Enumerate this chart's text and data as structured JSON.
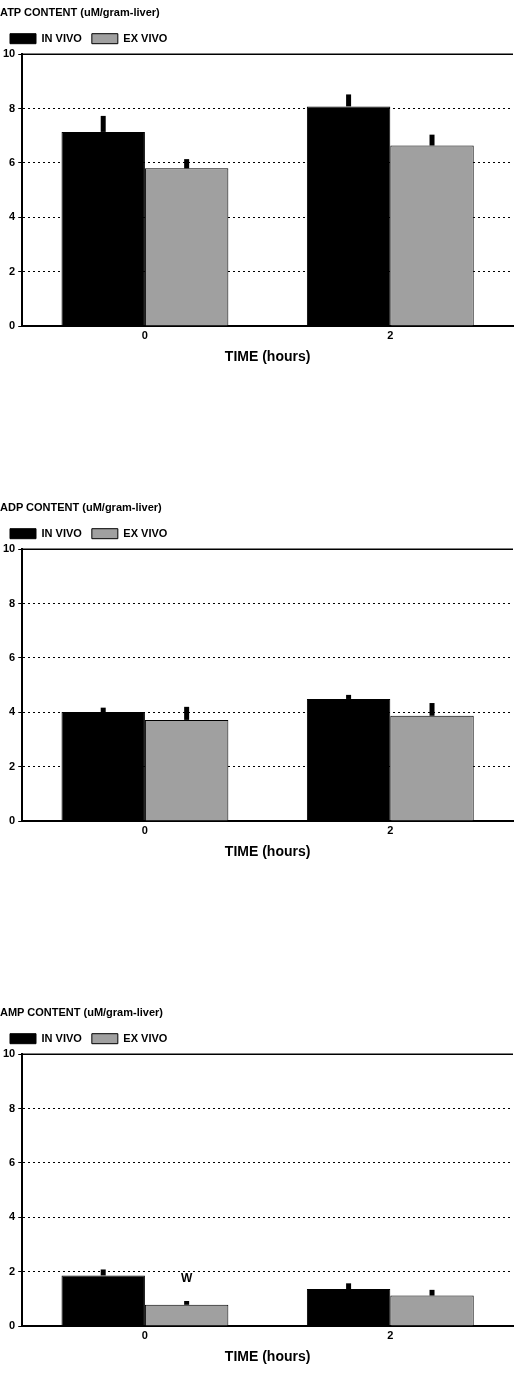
{
  "chart_data": [
    {
      "type": "bar",
      "title": "ATP CONTENT (uM/gram-liver)",
      "xlabel": "TIME (hours)",
      "categories": [
        "0",
        "2"
      ],
      "series": [
        {
          "name": "IN VIVO",
          "color": "#000000",
          "values": [
            7.14,
            8.08
          ],
          "errors": [
            [
              7.14,
              7.73
            ],
            [
              8.08,
              8.52
            ]
          ]
        },
        {
          "name": "EX VIVO",
          "color": "#a0a0a0",
          "values": [
            5.8,
            6.64
          ],
          "errors": [
            [
              5.8,
              6.14
            ],
            [
              6.64,
              7.04
            ]
          ]
        }
      ],
      "ylim": [
        0,
        10
      ],
      "yticks": [
        0,
        2,
        4,
        6,
        8,
        10
      ],
      "grid": "y",
      "line_style": "dotted",
      "legend": "top left"
    },
    {
      "type": "bar",
      "title": "ADP CONTENT (uM/gram-liver)",
      "xlabel": "TIME (hours)",
      "categories": [
        "0",
        "2"
      ],
      "series": [
        {
          "name": "IN VIVO",
          "color": "#000000",
          "values": [
            4.01,
            4.49
          ],
          "errors": [
            [
              4.01,
              4.17
            ],
            [
              4.49,
              4.64
            ]
          ]
        },
        {
          "name": "EX VIVO",
          "color": "#a0a0a0",
          "values": [
            3.72,
            3.87
          ],
          "errors": [
            [
              3.72,
              4.2
            ],
            [
              3.87,
              4.34
            ]
          ]
        }
      ],
      "ylim": [
        0,
        10
      ],
      "yticks": [
        0,
        2,
        4,
        6,
        8,
        10
      ],
      "grid": "y",
      "line_style": "dotted",
      "legend": "top left"
    },
    {
      "type": "bar",
      "title": "AMP CONTENT (uM/gram-liver)",
      "xlabel": "TIME (hours)",
      "categories": [
        "0",
        "2"
      ],
      "series": [
        {
          "name": "IN VIVO",
          "color": "#000000",
          "values": [
            1.86,
            1.36
          ],
          "errors": [
            [
              1.86,
              2.08
            ],
            [
              1.36,
              1.57
            ]
          ]
        },
        {
          "name": "EX VIVO",
          "color": "#a0a0a0",
          "values": [
            0.78,
            1.12
          ],
          "errors": [
            [
              0.78,
              0.92
            ],
            [
              1.12,
              1.33
            ]
          ]
        }
      ],
      "ylim": [
        0,
        10
      ],
      "yticks": [
        0,
        2,
        4,
        6,
        8,
        10
      ],
      "grid": "y",
      "line_style": "dotted",
      "legend": "top left",
      "annotations": [
        "W"
      ]
    }
  ]
}
